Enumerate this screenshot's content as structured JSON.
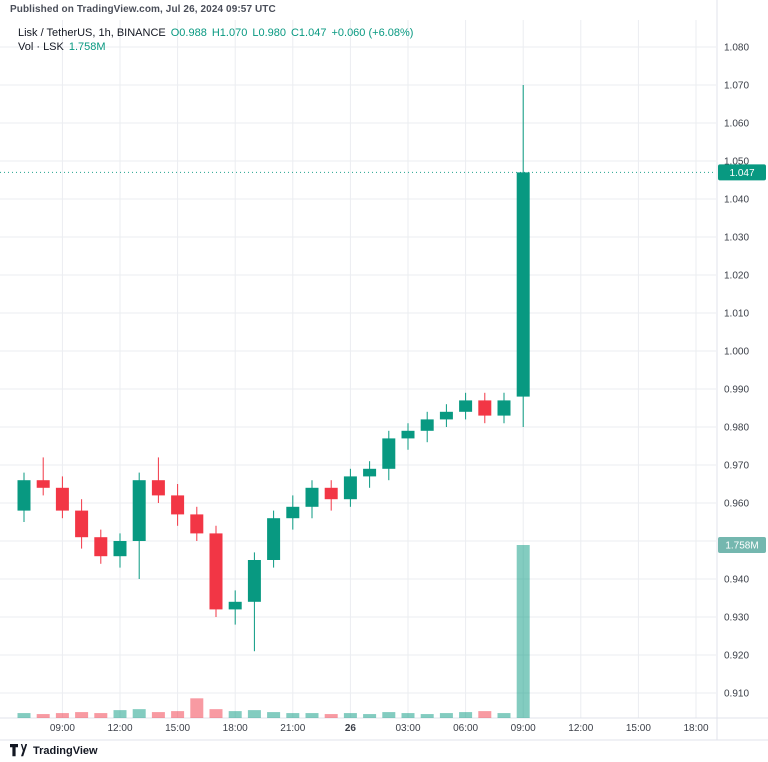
{
  "header": {
    "published": "Published on TradingView.com, Jul 26, 2024 09:57 UTC"
  },
  "legend": {
    "symbol": "Lisk / TetherUS, 1h, BINANCE",
    "o": "O0.988",
    "h": "H1.070",
    "l": "L0.980",
    "c": "C1.047",
    "change": "+0.060 (+6.08%)",
    "vol_label": "Vol · LSK",
    "vol_value": "1.758M"
  },
  "colors": {
    "up": "#089981",
    "down": "#f23645",
    "grid": "#ebedf1",
    "axis_text": "#3c4049",
    "separator": "#e0e3eb",
    "price_badge": "#089981",
    "vol_badge": "#74b7af",
    "badge_text": "#ffffff"
  },
  "chart_data": {
    "type": "candlestick",
    "title": "Lisk / TetherUS, 1h, BINANCE",
    "ylim": [
      0.905,
      1.085
    ],
    "grid": true,
    "last_price": 1.047,
    "last_price_label": "1.047",
    "last_volume": 1.758,
    "last_volume_label": "1.758M",
    "y_ticks": [
      "1.080",
      "1.070",
      "1.060",
      "1.050",
      "1.040",
      "1.030",
      "1.020",
      "1.010",
      "1.000",
      "0.990",
      "0.980",
      "0.970",
      "0.960",
      "0.950",
      "0.940",
      "0.930",
      "0.920",
      "0.910"
    ],
    "x_ticks": [
      {
        "label": "09:00",
        "idx": 2
      },
      {
        "label": "12:00",
        "idx": 5
      },
      {
        "label": "15:00",
        "idx": 8
      },
      {
        "label": "18:00",
        "idx": 11
      },
      {
        "label": "21:00",
        "idx": 14
      },
      {
        "label": "26",
        "idx": 17,
        "bold": true
      },
      {
        "label": "03:00",
        "idx": 20
      },
      {
        "label": "06:00",
        "idx": 23
      },
      {
        "label": "09:00",
        "idx": 26
      },
      {
        "label": "12:00",
        "idx": 29
      },
      {
        "label": "15:00",
        "idx": 32
      },
      {
        "label": "18:00",
        "idx": 35
      }
    ],
    "candles": [
      {
        "time": "07:00",
        "o": 0.958,
        "h": 0.968,
        "l": 0.955,
        "c": 0.966,
        "v": 0.05
      },
      {
        "time": "08:00",
        "o": 0.966,
        "h": 0.972,
        "l": 0.962,
        "c": 0.964,
        "v": 0.04
      },
      {
        "time": "09:00",
        "o": 0.964,
        "h": 0.967,
        "l": 0.956,
        "c": 0.958,
        "v": 0.05
      },
      {
        "time": "10:00",
        "o": 0.958,
        "h": 0.961,
        "l": 0.948,
        "c": 0.951,
        "v": 0.06
      },
      {
        "time": "11:00",
        "o": 0.951,
        "h": 0.953,
        "l": 0.944,
        "c": 0.946,
        "v": 0.05
      },
      {
        "time": "12:00",
        "o": 0.946,
        "h": 0.952,
        "l": 0.943,
        "c": 0.95,
        "v": 0.08
      },
      {
        "time": "13:00",
        "o": 0.95,
        "h": 0.968,
        "l": 0.94,
        "c": 0.966,
        "v": 0.09
      },
      {
        "time": "14:00",
        "o": 0.966,
        "h": 0.972,
        "l": 0.96,
        "c": 0.962,
        "v": 0.06
      },
      {
        "time": "15:00",
        "o": 0.962,
        "h": 0.965,
        "l": 0.954,
        "c": 0.957,
        "v": 0.07
      },
      {
        "time": "16:00",
        "o": 0.957,
        "h": 0.959,
        "l": 0.95,
        "c": 0.952,
        "v": 0.2
      },
      {
        "time": "17:00",
        "o": 0.952,
        "h": 0.954,
        "l": 0.93,
        "c": 0.932,
        "v": 0.09
      },
      {
        "time": "18:00",
        "o": 0.932,
        "h": 0.937,
        "l": 0.928,
        "c": 0.934,
        "v": 0.07
      },
      {
        "time": "19:00",
        "o": 0.934,
        "h": 0.947,
        "l": 0.921,
        "c": 0.945,
        "v": 0.08
      },
      {
        "time": "20:00",
        "o": 0.945,
        "h": 0.958,
        "l": 0.943,
        "c": 0.956,
        "v": 0.06
      },
      {
        "time": "21:00",
        "o": 0.956,
        "h": 0.962,
        "l": 0.953,
        "c": 0.959,
        "v": 0.05
      },
      {
        "time": "22:00",
        "o": 0.959,
        "h": 0.966,
        "l": 0.956,
        "c": 0.964,
        "v": 0.05
      },
      {
        "time": "23:00",
        "o": 0.964,
        "h": 0.966,
        "l": 0.958,
        "c": 0.961,
        "v": 0.04
      },
      {
        "time": "00:00",
        "o": 0.961,
        "h": 0.969,
        "l": 0.959,
        "c": 0.967,
        "v": 0.05
      },
      {
        "time": "01:00",
        "o": 0.967,
        "h": 0.971,
        "l": 0.964,
        "c": 0.969,
        "v": 0.04
      },
      {
        "time": "02:00",
        "o": 0.969,
        "h": 0.979,
        "l": 0.966,
        "c": 0.977,
        "v": 0.06
      },
      {
        "time": "03:00",
        "o": 0.977,
        "h": 0.981,
        "l": 0.974,
        "c": 0.979,
        "v": 0.05
      },
      {
        "time": "04:00",
        "o": 0.979,
        "h": 0.984,
        "l": 0.976,
        "c": 0.982,
        "v": 0.04
      },
      {
        "time": "05:00",
        "o": 0.982,
        "h": 0.986,
        "l": 0.98,
        "c": 0.984,
        "v": 0.05
      },
      {
        "time": "06:00",
        "o": 0.984,
        "h": 0.989,
        "l": 0.982,
        "c": 0.987,
        "v": 0.06
      },
      {
        "time": "07:00",
        "o": 0.987,
        "h": 0.989,
        "l": 0.981,
        "c": 0.983,
        "v": 0.07
      },
      {
        "time": "08:00",
        "o": 0.983,
        "h": 0.989,
        "l": 0.981,
        "c": 0.987,
        "v": 0.05
      },
      {
        "time": "09:00",
        "o": 0.988,
        "h": 1.07,
        "l": 0.98,
        "c": 1.047,
        "v": 1.758
      }
    ]
  },
  "footer": {
    "brand": "TradingView"
  }
}
